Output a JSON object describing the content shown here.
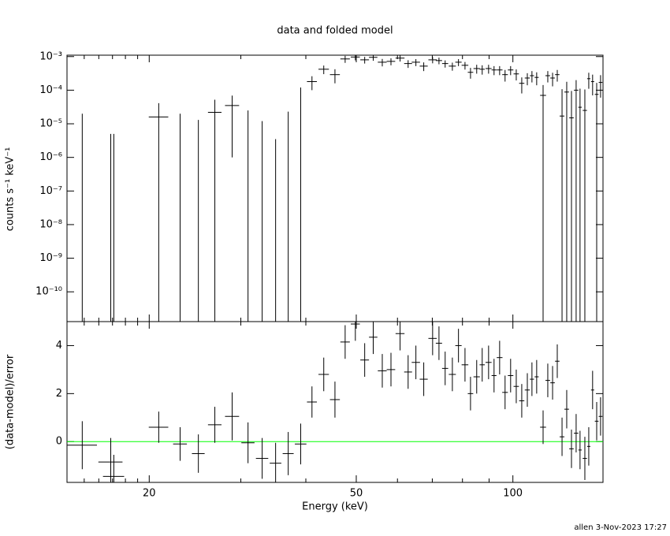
{
  "chart_data": [
    {
      "type": "errorbar",
      "title": "data and folded model",
      "ylabel": "counts s⁻¹ keV⁻¹",
      "log_x": true,
      "log_y": true,
      "color": "#000000",
      "xlim": [
        13.9,
        149
      ],
      "xticks": [
        20,
        50,
        100
      ],
      "xminor_ticks": [
        15,
        16,
        17,
        18,
        19,
        30,
        40,
        60,
        70,
        80,
        90
      ],
      "ylim": [
        1.3e-11,
        0.0011
      ],
      "yticks": [
        {
          "value": 0.001,
          "label": "10⁻³"
        },
        {
          "value": 0.0001,
          "label": "10⁻⁴"
        },
        {
          "value": 1e-05,
          "label": "10⁻⁵"
        },
        {
          "value": 1e-06,
          "label": "10⁻⁶"
        },
        {
          "value": 1e-07,
          "label": "10⁻⁷"
        },
        {
          "value": 1e-08,
          "label": "10⁻⁸"
        },
        {
          "value": 1e-09,
          "label": "10⁻⁹"
        },
        {
          "value": 1e-10,
          "label": "10⁻¹⁰"
        }
      ],
      "x": [
        14.87,
        16.87,
        17.1,
        20.86,
        22.93,
        24.86,
        26.74,
        28.87,
        30.97,
        32.97,
        34.99,
        37.0,
        39.1,
        41.1,
        43.3,
        45.5,
        47.6,
        49.8,
        51.9,
        53.9,
        56.1,
        58.3,
        60.7,
        62.9,
        65.1,
        67.4,
        70.1,
        72.1,
        74.1,
        76.5,
        78.6,
        80.9,
        82.9,
        85.2,
        87.3,
        89.8,
        92.0,
        94.3,
        96.6,
        99.0,
        101.5,
        104.0,
        106.6,
        108.8,
        111.1,
        114.3,
        116.7,
        119.2,
        121.7,
        124.3,
        126.9,
        129.6,
        132.3,
        134.6,
        137.5,
        139.9,
        142.3,
        144.9,
        147.4
      ],
      "xerr": [
        1.0,
        0.9,
        0.8,
        0.9,
        0.7,
        0.7,
        0.8,
        0.9,
        0.9,
        0.9,
        0.9,
        0.9,
        1.0,
        0.9,
        1.0,
        1.0,
        1.0,
        1.0,
        1.0,
        1.0,
        1.1,
        1.1,
        1.2,
        1.1,
        1.2,
        1.2,
        1.3,
        1.0,
        1.0,
        1.2,
        1.1,
        1.2,
        1.0,
        1.2,
        1.0,
        1.2,
        1.0,
        1.2,
        1.2,
        1.2,
        1.2,
        1.2,
        1.2,
        1.0,
        1.0,
        1.5,
        1.2,
        1.2,
        1.2,
        1.3,
        1.3,
        1.3,
        1.3,
        1.0,
        1.3,
        1.0,
        1.0,
        1.2,
        1.2
      ],
      "values": [
        0,
        0,
        0,
        1.6e-05,
        0,
        0,
        2.2e-05,
        3.5e-05,
        0,
        0,
        0,
        0,
        0,
        0.00018,
        0.00042,
        0.00029,
        0.00085,
        0.00097,
        0.0008,
        0.00095,
        0.00068,
        0.00072,
        0.0009,
        0.00062,
        0.00068,
        0.00052,
        0.0008,
        0.00076,
        0.00062,
        0.00052,
        0.00068,
        0.00055,
        0.00034,
        0.00044,
        0.00042,
        0.00044,
        0.0004,
        0.0004,
        0.00029,
        0.0004,
        0.000305,
        0.00016,
        0.00023,
        0.00027,
        0.00024,
        7e-05,
        0.00027,
        0.00023,
        0.00029,
        1.7e-05,
        8.8e-05,
        1.5e-05,
        0.0001,
        3.1e-05,
        2.5e-05,
        0.00022,
        0.00018,
        7.5e-05,
        0.00017
      ],
      "errors": [
        2e-05,
        5e-06,
        5e-06,
        2.5e-05,
        2e-05,
        1.3e-05,
        3e-05,
        3.4e-05,
        2.5e-05,
        1.2e-05,
        3.5e-06,
        2.3e-05,
        0.00012,
        8e-05,
        0.00012,
        0.00013,
        0.0002,
        0.0002,
        0.00018,
        0.0002,
        0.00017,
        0.00017,
        0.00019,
        0.00016,
        0.00016,
        0.00015,
        0.00017,
        0.00017,
        0.00015,
        0.00014,
        0.00016,
        0.00014,
        0.00012,
        0.00013,
        0.00013,
        0.00013,
        0.00012,
        0.00012,
        0.00011,
        0.00012,
        0.00011,
        8e-05,
        9e-05,
        0.0001,
        0.0001,
        7.2e-05,
        0.0001,
        0.0001,
        0.00011,
        9e-05,
        9e-05,
        8e-05,
        0.0001,
        8e-05,
        8e-05,
        0.00011,
        0.00011,
        9e-05,
        0.00011
      ]
    },
    {
      "type": "errorbar",
      "xlabel": "Energy (keV)",
      "ylabel": "(data-model)/error",
      "log_x": true,
      "log_y": false,
      "color": "#000000",
      "reference_line": 0,
      "reference_color": "#00ff00",
      "xlim": [
        13.9,
        149
      ],
      "xticks": [
        20,
        50,
        100
      ],
      "xminor_ticks": [
        15,
        16,
        17,
        18,
        19,
        30,
        40,
        60,
        70,
        80,
        90
      ],
      "ylim": [
        -1.7,
        5
      ],
      "yticks": [
        0,
        2,
        4
      ],
      "x": [
        14.87,
        16.87,
        17.1,
        20.86,
        22.93,
        24.86,
        26.74,
        28.87,
        30.97,
        32.97,
        34.99,
        37.0,
        39.1,
        41.1,
        43.3,
        45.5,
        47.6,
        49.8,
        51.9,
        53.9,
        56.1,
        58.3,
        60.7,
        62.9,
        65.1,
        67.4,
        70.1,
        72.1,
        74.1,
        76.5,
        78.6,
        80.9,
        82.9,
        85.2,
        87.3,
        89.8,
        92.0,
        94.3,
        96.6,
        99.0,
        101.5,
        104.0,
        106.6,
        108.8,
        111.1,
        114.3,
        116.7,
        119.2,
        121.7,
        124.3,
        126.9,
        129.6,
        132.3,
        134.6,
        137.5,
        139.9,
        142.3,
        144.9,
        147.4
      ],
      "xerr": [
        1.0,
        0.9,
        0.8,
        0.9,
        0.7,
        0.7,
        0.8,
        0.9,
        0.9,
        0.9,
        0.9,
        0.9,
        1.0,
        0.9,
        1.0,
        1.0,
        1.0,
        1.0,
        1.0,
        1.0,
        1.1,
        1.1,
        1.2,
        1.1,
        1.2,
        1.2,
        1.3,
        1.0,
        1.0,
        1.2,
        1.1,
        1.2,
        1.0,
        1.2,
        1.0,
        1.2,
        1.0,
        1.2,
        1.2,
        1.2,
        1.2,
        1.2,
        1.2,
        1.0,
        1.0,
        1.5,
        1.2,
        1.2,
        1.2,
        1.3,
        1.3,
        1.3,
        1.3,
        1.0,
        1.3,
        1.0,
        1.0,
        1.2,
        1.2
      ],
      "values": [
        -0.15,
        -0.85,
        -1.45,
        0.6,
        -0.1,
        -0.5,
        0.7,
        1.05,
        -0.05,
        -0.7,
        -0.9,
        -0.5,
        -0.1,
        1.65,
        2.8,
        1.75,
        4.15,
        4.9,
        3.4,
        4.35,
        2.95,
        3.0,
        4.5,
        2.9,
        3.3,
        2.6,
        4.3,
        4.1,
        3.05,
        2.8,
        4.0,
        3.2,
        2.0,
        2.7,
        3.2,
        3.3,
        2.75,
        3.5,
        2.05,
        2.75,
        2.3,
        1.7,
        2.15,
        2.6,
        2.7,
        0.6,
        2.55,
        2.45,
        3.35,
        0.2,
        1.35,
        -0.3,
        0.35,
        -0.35,
        -0.7,
        -0.2,
        2.15,
        0.85,
        1.05
      ],
      "errors": [
        1.0,
        1.0,
        0.9,
        0.65,
        0.7,
        0.8,
        0.75,
        1.0,
        0.85,
        0.85,
        0.85,
        0.9,
        0.85,
        0.65,
        0.7,
        0.75,
        0.7,
        0.7,
        0.7,
        0.7,
        0.7,
        0.7,
        0.7,
        0.7,
        0.7,
        0.7,
        0.7,
        0.7,
        0.7,
        0.7,
        0.7,
        0.7,
        0.7,
        0.7,
        0.7,
        0.7,
        0.7,
        0.7,
        0.7,
        0.7,
        0.7,
        0.7,
        0.7,
        0.7,
        0.7,
        0.7,
        0.7,
        0.7,
        0.7,
        0.8,
        0.8,
        0.8,
        0.8,
        0.8,
        0.9,
        0.8,
        0.8,
        0.8,
        0.8
      ]
    }
  ],
  "footer": "allen  3-Nov-2023 17:27"
}
